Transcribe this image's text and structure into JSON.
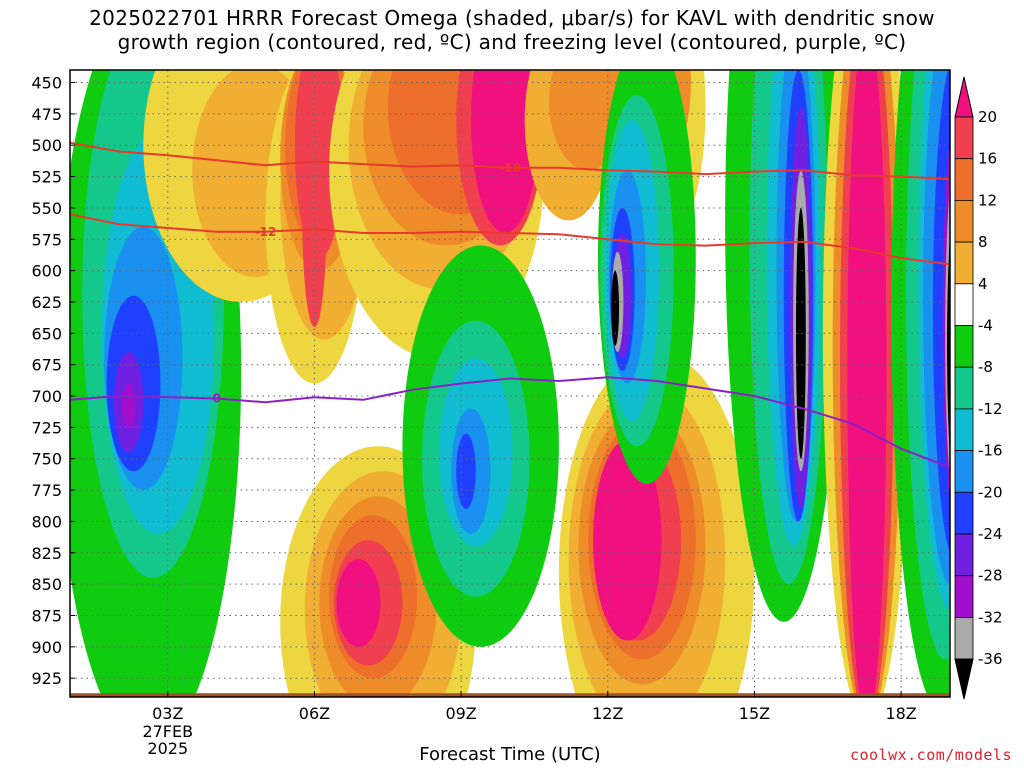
{
  "title": {
    "line1": "2025022701 HRRR Forecast Omega (shaded, μbar/s) for KAVL with dendritic snow",
    "line2": "growth region (contoured, red, ºC) and freezing level (contoured, purple, ºC)"
  },
  "footer": {
    "xlabel": "Forecast Time (UTC)",
    "credit": "coolwx.com/models"
  },
  "chart_data": {
    "type": "heatmap",
    "title": "2025022701 HRRR Forecast Omega (shaded, μbar/s) for KAVL with dendritic snow growth region (contoured, red, ºC) and freezing level (contoured, purple, ºC)",
    "xlabel": "Forecast Time (UTC)",
    "ylabel": "",
    "x_range_hours": [
      1,
      19
    ],
    "x_ticks": [
      {
        "hour": 3,
        "label": "03Z",
        "sub": [
          "27FEB",
          "2025"
        ]
      },
      {
        "hour": 6,
        "label": "06Z"
      },
      {
        "hour": 9,
        "label": "09Z"
      },
      {
        "hour": 12,
        "label": "12Z"
      },
      {
        "hour": 15,
        "label": "15Z"
      },
      {
        "hour": 18,
        "label": "18Z"
      }
    ],
    "y_axis": "pressure (hPa), inverted",
    "y_range": [
      940,
      440
    ],
    "y_ticks": [
      450,
      475,
      500,
      525,
      550,
      575,
      600,
      625,
      650,
      675,
      700,
      725,
      750,
      775,
      800,
      825,
      850,
      875,
      900,
      925
    ],
    "grid": true,
    "colorbar": {
      "labels": [
        20,
        16,
        12,
        8,
        4,
        -4,
        -8,
        -12,
        -16,
        -20,
        -24,
        -28,
        -32,
        -36
      ],
      "bands": [
        {
          "range": [
            20,
            24
          ],
          "color": "#f0107f"
        },
        {
          "range": [
            16,
            20
          ],
          "color": "#f04050"
        },
        {
          "range": [
            12,
            16
          ],
          "color": "#ee6e2c"
        },
        {
          "range": [
            8,
            12
          ],
          "color": "#ee8c2a"
        },
        {
          "range": [
            4,
            8
          ],
          "color": "#f0ae32"
        },
        {
          "range": [
            0,
            4
          ],
          "color": "#eed640"
        },
        {
          "range": [
            -4,
            4
          ],
          "color": "#ffffff"
        },
        {
          "range": [
            -8,
            -4
          ],
          "color": "#10cc10"
        },
        {
          "range": [
            -12,
            -8
          ],
          "color": "#14c88c"
        },
        {
          "range": [
            -16,
            -12
          ],
          "color": "#10bcd2"
        },
        {
          "range": [
            -20,
            -16
          ],
          "color": "#1a90f0"
        },
        {
          "range": [
            -24,
            -20
          ],
          "color": "#2040ff"
        },
        {
          "range": [
            -28,
            -24
          ],
          "color": "#7020e0"
        },
        {
          "range": [
            -32,
            -28
          ],
          "color": "#a010cc"
        },
        {
          "range": [
            -36,
            -32
          ],
          "color": "#aaaaaa"
        },
        {
          "range": [
            -40,
            -36
          ],
          "color": "#000000"
        }
      ]
    },
    "surface_color": "#a0522d",
    "contours": [
      {
        "label": "-18",
        "color": "#e63a2e",
        "points": [
          [
            1.0,
            498
          ],
          [
            2.0,
            505
          ],
          [
            3.0,
            508
          ],
          [
            4.0,
            512
          ],
          [
            5.0,
            516
          ],
          [
            6.0,
            513
          ],
          [
            7.0,
            515
          ],
          [
            8.0,
            517
          ],
          [
            9.0,
            516
          ],
          [
            10.0,
            518
          ],
          [
            11.0,
            518
          ],
          [
            12.0,
            520
          ],
          [
            13.0,
            521
          ],
          [
            14.0,
            523
          ],
          [
            15.0,
            521
          ],
          [
            16.0,
            520
          ],
          [
            17.0,
            524
          ],
          [
            18.0,
            525
          ],
          [
            19.0,
            527
          ]
        ]
      },
      {
        "label": "-12",
        "color": "#e63a2e",
        "points": [
          [
            1.0,
            555
          ],
          [
            2.0,
            563
          ],
          [
            3.0,
            566
          ],
          [
            4.0,
            569
          ],
          [
            5.0,
            569
          ],
          [
            6.0,
            567
          ],
          [
            7.0,
            570
          ],
          [
            8.0,
            570
          ],
          [
            9.0,
            569
          ],
          [
            10.0,
            570
          ],
          [
            11.0,
            571
          ],
          [
            12.0,
            575
          ],
          [
            13.0,
            579
          ],
          [
            14.0,
            580
          ],
          [
            15.0,
            578
          ],
          [
            16.0,
            577
          ],
          [
            17.0,
            582
          ],
          [
            18.0,
            590
          ],
          [
            19.0,
            595
          ]
        ]
      },
      {
        "label": "0",
        "color": "#8b20c8",
        "points": [
          [
            1.0,
            703
          ],
          [
            2.0,
            700
          ],
          [
            3.0,
            701
          ],
          [
            4.0,
            702
          ],
          [
            5.0,
            705
          ],
          [
            6.0,
            701
          ],
          [
            7.0,
            703
          ],
          [
            8.0,
            695
          ],
          [
            9.0,
            690
          ],
          [
            10.0,
            686
          ],
          [
            11.0,
            688
          ],
          [
            12.0,
            685
          ],
          [
            13.0,
            688
          ],
          [
            14.0,
            694
          ],
          [
            15.0,
            700
          ],
          [
            16.0,
            710
          ],
          [
            17.0,
            722
          ],
          [
            18.0,
            742
          ],
          [
            19.0,
            757
          ]
        ]
      }
    ]
  }
}
